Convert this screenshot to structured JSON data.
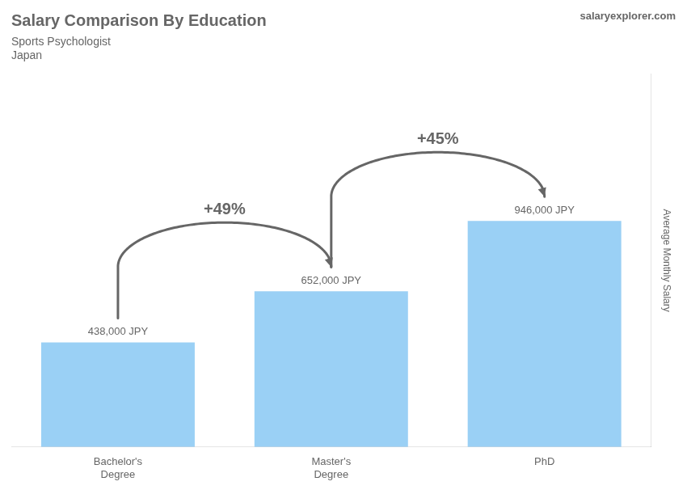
{
  "chart_data": {
    "type": "bar",
    "title": "Salary Comparison By Education",
    "subtitle": [
      "Sports Psychologist",
      "Japan"
    ],
    "source": "salaryexplorer.com",
    "ylabel": "Average Monthly Salary",
    "categories": [
      "Bachelor's\nDegree",
      "Master's\nDegree",
      "PhD"
    ],
    "values": [
      438000,
      652000,
      946000
    ],
    "value_labels": [
      "438,000 JPY",
      "652,000 JPY",
      "946,000 JPY"
    ],
    "data_labels": true,
    "annotations": [
      "+49%",
      "+45%"
    ],
    "ylim": [
      0,
      1560900
    ],
    "tick_labels": "x",
    "grid": false
  }
}
